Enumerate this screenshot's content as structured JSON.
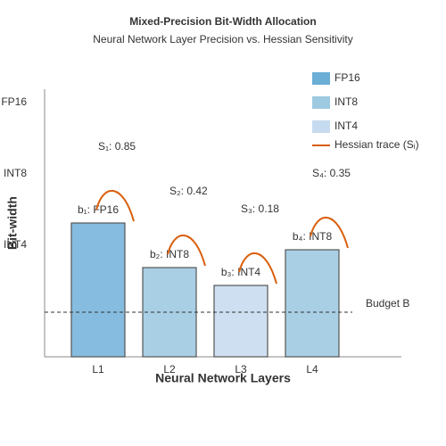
{
  "chart_data": {
    "type": "bar",
    "title": "Mixed-Precision Bit-Width Allocation",
    "subtitle": "Neural Network Layer Precision vs. Hessian Sensitivity",
    "x_label": "Neural Network Layers",
    "y_label": "Bit-width",
    "categories": [
      "L1",
      "L2",
      "L3",
      "L4"
    ],
    "values": [
      150,
      100,
      80,
      120
    ],
    "colors": [
      "#86bcdf",
      "#a9cfe5",
      "#cddff0",
      "#a9cfe5"
    ],
    "bar_labels": [
      "b₁: FP16",
      "b₂: INT8",
      "b₃: INT4",
      "b₄: INT8"
    ],
    "sensitivity": [
      0.85,
      0.42,
      0.18,
      0.35
    ],
    "sensitivity_labels": [
      "S₁: 0.85",
      "S₂: 0.42",
      "S₃: 0.18",
      "S₄: 0.35"
    ],
    "sensitivity_color": "#d95f0e",
    "budget": 50,
    "budget_label": "Budget B",
    "ylim": [
      0,
      300
    ],
    "yticks": [
      {
        "value": 125,
        "label": "INT4"
      },
      {
        "value": 205,
        "label": "INT8"
      },
      {
        "value": 285,
        "label": "FP16"
      }
    ],
    "legend": [
      {
        "name": "FP16",
        "color": "#6baed6"
      },
      {
        "name": "INT8",
        "color": "#9ecae1"
      },
      {
        "name": "INT4",
        "color": "#c6dbef"
      },
      {
        "name": "Hessian trace (Sᵢ)",
        "color": "#d95f0e"
      }
    ]
  }
}
